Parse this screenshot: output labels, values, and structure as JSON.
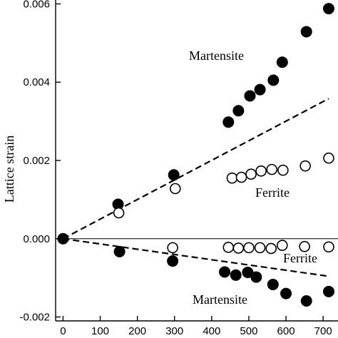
{
  "chart_data": {
    "type": "scatter",
    "title": "",
    "xlabel": "",
    "ylabel": "Lattice strain",
    "xlim": [
      -20,
      740
    ],
    "ylim": [
      -0.0021,
      0.0061
    ],
    "grid": false,
    "x_ticks": [
      0,
      100,
      200,
      300,
      400,
      500,
      600,
      700
    ],
    "x_tick_labels": [
      "0",
      "100",
      "200",
      "300",
      "400",
      "500",
      "600",
      "700"
    ],
    "y_ticks": [
      -0.002,
      0,
      0.002,
      0.004,
      0.006
    ],
    "y_tick_labels": [
      "-0.002",
      "0.000",
      "0.002",
      "0.004",
      "0.006"
    ],
    "zero_line": 0,
    "series": [
      {
        "group": "upper",
        "marker": "filled-circle",
        "x": [
          0,
          148,
          298,
          445,
          472,
          503,
          530,
          566,
          590,
          655,
          715
        ],
        "y": [
          0,
          0.00088,
          0.00163,
          0.00298,
          0.00327,
          0.00365,
          0.00381,
          0.00405,
          0.00451,
          0.00529,
          0.00588
        ]
      },
      {
        "group": "upper",
        "marker": "open-circle",
        "x": [
          150,
          302,
          455,
          480,
          506,
          533,
          562,
          592,
          652,
          715
        ],
        "y": [
          0.00066,
          0.00128,
          0.00155,
          0.00157,
          0.00165,
          0.00173,
          0.00177,
          0.00175,
          0.00186,
          0.00206
        ]
      },
      {
        "group": "lower",
        "marker": "filled-circle",
        "x": [
          152,
          295,
          435,
          465,
          497,
          520,
          565,
          600,
          655,
          715
        ],
        "y": [
          -0.00033,
          -0.00057,
          -0.00085,
          -0.00093,
          -0.00086,
          -0.00098,
          -0.00117,
          -0.0014,
          -0.00159,
          -0.00135
        ]
      },
      {
        "group": "lower",
        "marker": "open-circle",
        "x": [
          295,
          445,
          472,
          500,
          530,
          560,
          590,
          650,
          715
        ],
        "y": [
          -0.00023,
          -0.00022,
          -0.00024,
          -0.00023,
          -0.00023,
          -0.00025,
          -0.00017,
          -0.0002,
          -0.00021
        ]
      }
    ],
    "fit_lines": [
      {
        "style": "dashed",
        "x": [
          0,
          715
        ],
        "y": [
          0,
          0.00358
        ]
      },
      {
        "style": "dashed",
        "x": [
          0,
          715
        ],
        "y": [
          0,
          -0.00096
        ]
      }
    ],
    "annotations": [
      {
        "text": "Martensite",
        "near": "upper filled circles"
      },
      {
        "text": "Ferrite",
        "near": "upper open circles"
      },
      {
        "text": "Ferrite",
        "near": "lower open circles"
      },
      {
        "text": "Martensite",
        "near": "lower filled circles"
      }
    ],
    "colors": {
      "marker": "#000000",
      "open_fill": "#ffffff",
      "axis": "#000000"
    }
  }
}
